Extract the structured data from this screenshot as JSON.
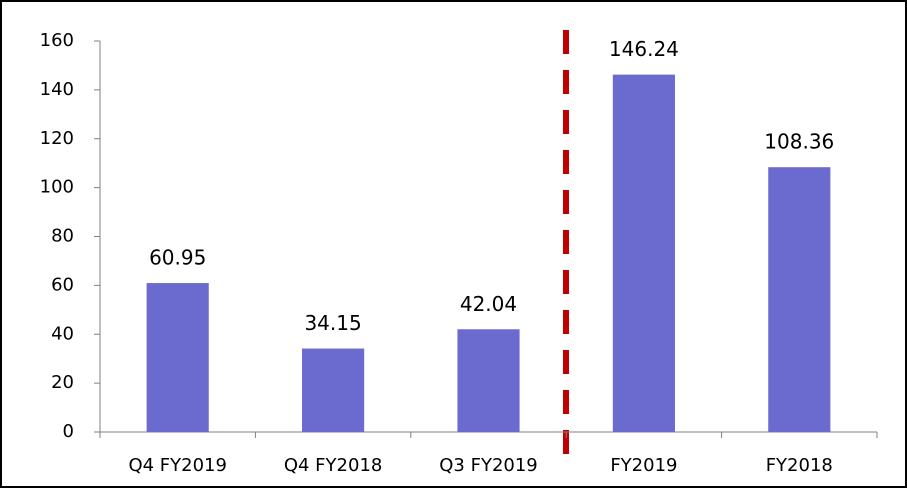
{
  "chart_data": {
    "type": "bar",
    "categories": [
      "Q4 FY2019",
      "Q4 FY2018",
      "Q3 FY2019",
      "FY2019",
      "FY2018"
    ],
    "values": [
      60.95,
      34.15,
      42.04,
      146.24,
      108.36
    ],
    "color": "#6b6bcf",
    "ylim": [
      0,
      160
    ],
    "yticks": [
      0,
      20,
      40,
      60,
      80,
      100,
      120,
      140,
      160
    ],
    "grid": false
  }
}
